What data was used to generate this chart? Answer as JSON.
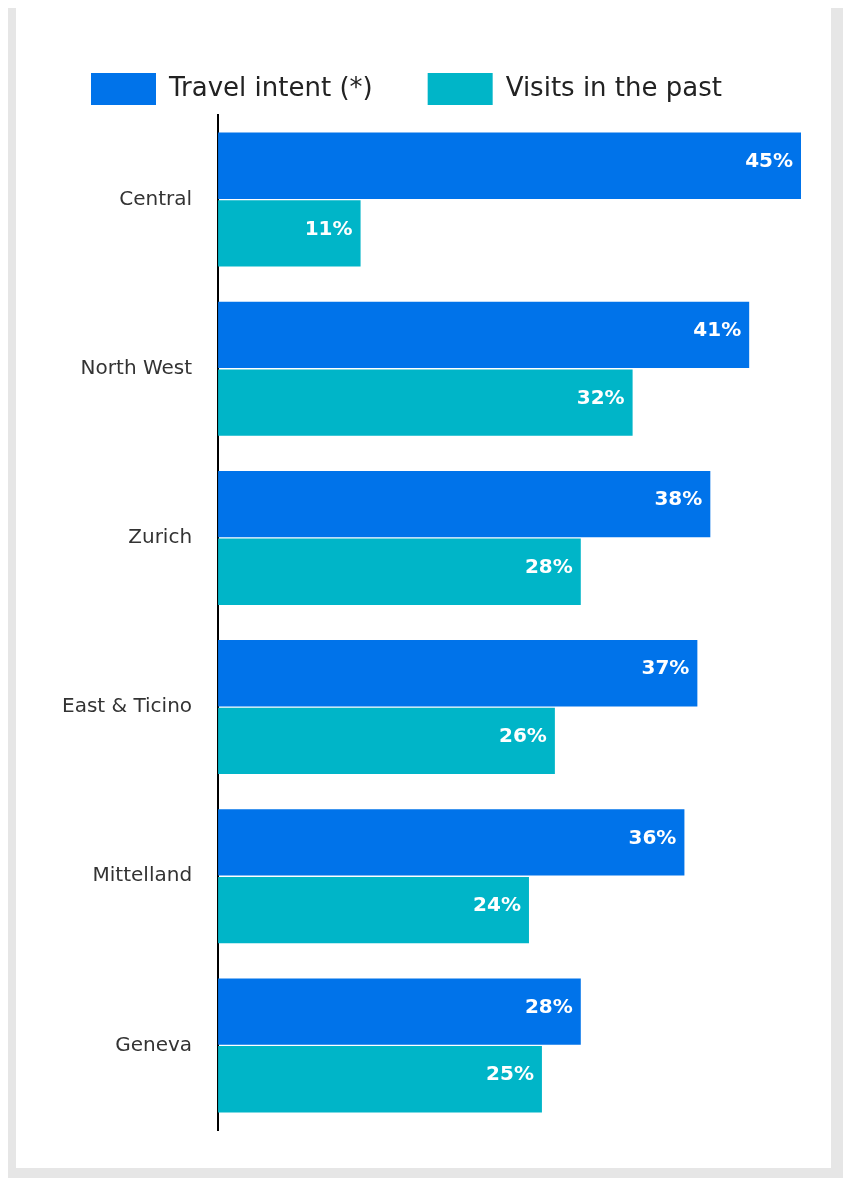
{
  "chart_data": {
    "type": "bar",
    "orientation": "horizontal",
    "categories": [
      "Central",
      "North West",
      "Zurich",
      "East & Ticino",
      "Mittelland",
      "Geneva"
    ],
    "series": [
      {
        "name": "Travel intent (*)",
        "color": "#0073ea",
        "values": [
          45,
          41,
          38,
          37,
          36,
          28
        ],
        "value_labels": [
          "45%",
          "41%",
          "38%",
          "37%",
          "36%",
          "28%"
        ]
      },
      {
        "name": "Visits in the past",
        "color": "#00b5c8",
        "values": [
          11,
          32,
          28,
          26,
          24,
          25
        ],
        "value_labels": [
          "11%",
          "32%",
          "28%",
          "26%",
          "24%",
          "25%"
        ]
      }
    ],
    "legend": "top left"
  }
}
